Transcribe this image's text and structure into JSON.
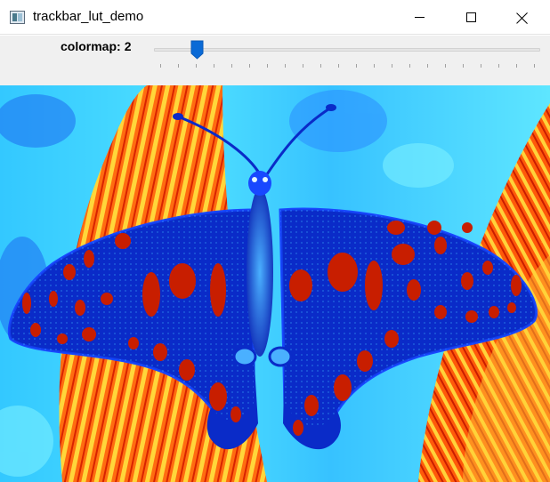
{
  "window": {
    "title": "trackbar_lut_demo",
    "icon": "opencv-window-icon",
    "controls": [
      "minimize-icon",
      "maximize-icon",
      "close-icon"
    ]
  },
  "trackbar": {
    "name": "colormap:",
    "value": "2",
    "slider_level": 0.095,
    "tick_count": 22
  },
  "image": {
    "subject": "butterfly",
    "colors": {
      "blue": "#0a2bc8",
      "red": "#c81e00",
      "cyan": "#2fd0ff",
      "orange": "#ff7a1a",
      "yellow": "#ffe23c"
    }
  }
}
